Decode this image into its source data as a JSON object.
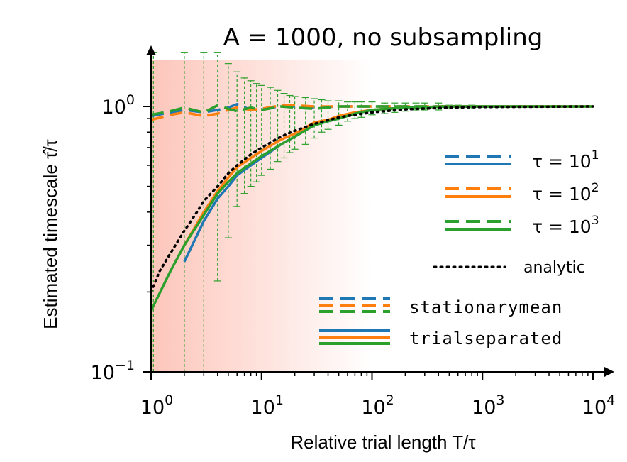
{
  "chart_data": {
    "type": "line",
    "title": "A = 1000, no subsampling",
    "xlabel": "Relative trial length  T/τ",
    "ylabel": "Estimated timescale  τ̂/τ",
    "xscale": "log",
    "yscale": "log",
    "xlim": [
      1,
      10000
    ],
    "ylim": [
      0.1,
      1.6
    ],
    "x_ticks": [
      {
        "value": 1,
        "base": "10",
        "exp": "0"
      },
      {
        "value": 10,
        "base": "10",
        "exp": "1"
      },
      {
        "value": 100,
        "base": "10",
        "exp": "2"
      },
      {
        "value": 1000,
        "base": "10",
        "exp": "3"
      },
      {
        "value": 10000,
        "base": "10",
        "exp": "4"
      }
    ],
    "y_ticks": [
      {
        "value": 0.1,
        "base": "10",
        "exp": "−1"
      },
      {
        "value": 1,
        "base": "10",
        "exp": "0"
      }
    ],
    "colors": {
      "tau1": "#1f77b4",
      "tau2": "#ff7f0e",
      "tau3": "#2ca02c",
      "analytic": "#000000",
      "shade": "#fa8066"
    },
    "shaded_region": {
      "x_from": 1,
      "x_to": 100,
      "color": "#fa8066",
      "opacity_start": 0.45
    },
    "legend": {
      "position": "right",
      "tau1_label": "τ = 10",
      "tau1_exp": "1",
      "tau2_label": "τ = 10",
      "tau2_exp": "2",
      "tau3_label": "τ = 10",
      "tau3_exp": "3",
      "analytic_label": "analytic",
      "stationary_label": "stationarymean",
      "trial_label": "trialseparated"
    },
    "series": [
      {
        "name": "τ = 10¹ stationarymean",
        "color": "#1f77b4",
        "style": "dashed",
        "x": [
          1,
          1.5,
          2,
          3,
          4,
          5,
          6,
          8,
          10,
          15,
          20,
          30,
          50,
          100,
          200,
          500,
          1000,
          10000
        ],
        "y": [
          0.92,
          0.95,
          0.97,
          0.95,
          0.97,
          0.99,
          1.02,
          0.97,
          0.98,
          1.0,
          1.0,
          0.99,
          1.0,
          1.0,
          1.0,
          1.0,
          1.0,
          1.0
        ]
      },
      {
        "name": "τ = 10² stationarymean",
        "color": "#ff7f0e",
        "style": "dashed",
        "x": [
          1,
          1.5,
          2,
          3,
          4,
          5,
          6,
          8,
          10,
          15,
          20,
          30,
          50,
          100,
          200,
          500,
          1000,
          10000
        ],
        "y": [
          0.89,
          0.93,
          0.95,
          0.92,
          0.94,
          0.97,
          0.99,
          0.97,
          0.98,
          1.01,
          1.01,
          1.0,
          1.0,
          1.0,
          1.0,
          1.0,
          1.0,
          1.0
        ]
      },
      {
        "name": "τ = 10³ stationarymean",
        "color": "#2ca02c",
        "style": "dashed",
        "x": [
          1,
          1.5,
          2,
          3,
          4,
          5,
          6,
          8,
          10,
          15,
          20,
          30,
          50,
          100,
          200,
          500,
          1000,
          10000
        ],
        "y": [
          0.93,
          0.96,
          0.99,
          0.95,
          1.01,
          0.98,
          0.96,
          0.99,
          0.97,
          1.0,
          0.99,
          0.98,
          1.0,
          1.0,
          1.0,
          1.0,
          1.0,
          1.0
        ]
      },
      {
        "name": "τ = 10¹ trialseparated",
        "color": "#1f77b4",
        "style": "solid",
        "x": [
          2,
          3,
          4,
          5,
          6,
          8,
          10,
          15,
          20,
          30,
          40,
          50,
          70,
          100,
          200,
          500,
          1000,
          10000
        ],
        "y": [
          0.26,
          0.37,
          0.45,
          0.5,
          0.55,
          0.6,
          0.64,
          0.72,
          0.77,
          0.85,
          0.88,
          0.9,
          0.94,
          0.97,
          0.99,
          1.0,
          1.0,
          1.0
        ]
      },
      {
        "name": "τ = 10² trialseparated",
        "color": "#ff7f0e",
        "style": "solid",
        "x": [
          2,
          3,
          4,
          5,
          6,
          8,
          10,
          15,
          20,
          30,
          40,
          50,
          70,
          100,
          200,
          500,
          1000,
          10000
        ],
        "y": [
          0.3,
          0.4,
          0.48,
          0.54,
          0.59,
          0.64,
          0.68,
          0.75,
          0.79,
          0.87,
          0.89,
          0.92,
          0.95,
          0.97,
          0.99,
          1.0,
          1.0,
          1.0
        ]
      },
      {
        "name": "τ = 10³ trialseparated",
        "color": "#2ca02c",
        "style": "solid",
        "x": [
          1,
          1.5,
          2,
          3,
          4,
          5,
          6,
          8,
          10,
          15,
          20,
          30,
          40,
          50,
          70,
          100,
          200,
          500,
          1000,
          10000
        ],
        "y": [
          0.17,
          0.24,
          0.3,
          0.39,
          0.47,
          0.52,
          0.56,
          0.61,
          0.65,
          0.72,
          0.77,
          0.85,
          0.88,
          0.9,
          0.94,
          0.97,
          0.99,
          1.0,
          1.0,
          1.0
        ]
      },
      {
        "name": "analytic",
        "color": "#000000",
        "style": "dotted",
        "x": [
          1,
          1.2,
          1.5,
          2,
          2.5,
          3,
          4,
          5,
          6,
          8,
          10,
          15,
          20,
          30,
          50,
          70,
          100,
          200,
          500,
          1000,
          10000
        ],
        "y": [
          0.2,
          0.24,
          0.28,
          0.34,
          0.39,
          0.44,
          0.5,
          0.56,
          0.6,
          0.66,
          0.7,
          0.77,
          0.81,
          0.86,
          0.91,
          0.93,
          0.95,
          0.975,
          0.99,
          0.995,
          1.0
        ]
      }
    ],
    "error_bars": {
      "color": "#2ca02c",
      "points": [
        {
          "x": 1.05,
          "low": 0.1,
          "high": 1.6
        },
        {
          "x": 2,
          "low": 0.1,
          "high": 1.6
        },
        {
          "x": 3,
          "low": 0.1,
          "high": 1.6
        },
        {
          "x": 4,
          "low": 0.22,
          "high": 1.6
        },
        {
          "x": 5,
          "low": 0.32,
          "high": 1.45
        },
        {
          "x": 6,
          "low": 0.42,
          "high": 1.35
        },
        {
          "x": 7,
          "low": 0.47,
          "high": 1.28
        },
        {
          "x": 8,
          "low": 0.5,
          "high": 1.25
        },
        {
          "x": 9,
          "low": 0.52,
          "high": 1.22
        },
        {
          "x": 10,
          "low": 0.55,
          "high": 1.2
        },
        {
          "x": 12,
          "low": 0.58,
          "high": 1.18
        },
        {
          "x": 14,
          "low": 0.62,
          "high": 1.15
        },
        {
          "x": 16,
          "low": 0.64,
          "high": 1.12
        },
        {
          "x": 18,
          "low": 0.67,
          "high": 1.1
        },
        {
          "x": 20,
          "low": 0.69,
          "high": 1.09
        },
        {
          "x": 25,
          "low": 0.72,
          "high": 1.08
        },
        {
          "x": 30,
          "low": 0.76,
          "high": 1.07
        },
        {
          "x": 35,
          "low": 0.8,
          "high": 1.06
        },
        {
          "x": 40,
          "low": 0.82,
          "high": 1.05
        },
        {
          "x": 50,
          "low": 0.85,
          "high": 1.05
        },
        {
          "x": 60,
          "low": 0.88,
          "high": 1.04
        },
        {
          "x": 70,
          "low": 0.9,
          "high": 1.04
        },
        {
          "x": 80,
          "low": 0.91,
          "high": 1.04
        },
        {
          "x": 100,
          "low": 0.93,
          "high": 1.04
        },
        {
          "x": 130,
          "low": 0.94,
          "high": 1.03
        },
        {
          "x": 160,
          "low": 0.95,
          "high": 1.03
        },
        {
          "x": 200,
          "low": 0.96,
          "high": 1.03
        },
        {
          "x": 250,
          "low": 0.97,
          "high": 1.03
        },
        {
          "x": 300,
          "low": 0.97,
          "high": 1.03
        },
        {
          "x": 400,
          "low": 0.97,
          "high": 1.03
        },
        {
          "x": 500,
          "low": 0.98,
          "high": 1.02
        },
        {
          "x": 600,
          "low": 0.98,
          "high": 1.02
        },
        {
          "x": 800,
          "low": 0.98,
          "high": 1.02
        }
      ]
    }
  }
}
